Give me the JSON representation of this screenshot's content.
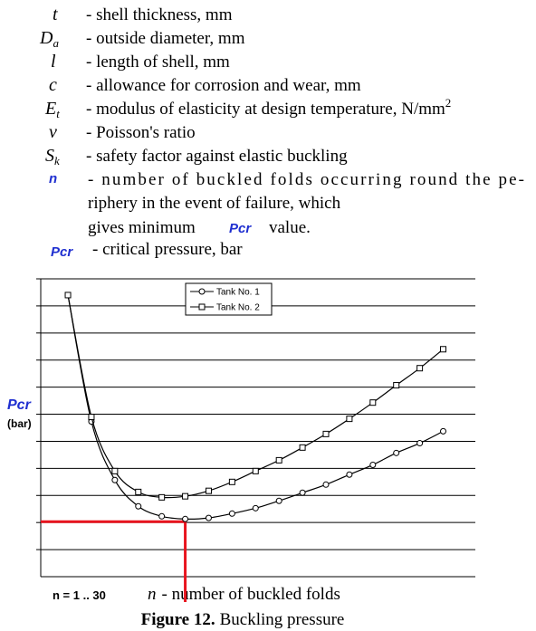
{
  "definitions": [
    {
      "symbol": "t",
      "text": "- shell thickness, mm"
    },
    {
      "symbol": "D",
      "subscript": "a",
      "text": "- outside diameter, mm"
    },
    {
      "symbol": "l",
      "text": "- length of shell, mm"
    },
    {
      "symbol": "c",
      "text": "- allowance for corrosion and wear, mm"
    },
    {
      "symbol": "E",
      "subscript": "t",
      "text": "- modulus of elasticity at design temperature, N/mm",
      "superscript": "2"
    },
    {
      "symbol": "ν",
      "text": "- Poisson's ratio"
    },
    {
      "symbol": "S",
      "subscript": "k",
      "text": "- safety factor against elastic buckling"
    },
    {
      "symbol": "n",
      "lines": [
        "- number of buckled folds occurring round the pe-",
        "riphery in the event of failure, which",
        "gives minimum",
        "Pcr",
        "value."
      ]
    },
    {
      "symbol": "Pcr",
      "text": "- critical pressure, bar"
    }
  ],
  "chart_data": {
    "type": "line",
    "y_label": "Pcr",
    "y_unit": "(bar)",
    "x_range_label": "n = 1 .. 30",
    "x_label_var": "n",
    "x_label": "- number of buckled folds",
    "x": [
      2,
      3,
      4,
      5,
      6,
      7,
      8,
      9,
      10,
      11,
      12,
      13,
      14,
      15,
      16,
      17,
      18
    ],
    "xlim": [
      0.84,
      19.37
    ],
    "ylim": [
      0,
      11
    ],
    "ygrid": [
      1,
      2,
      3,
      4,
      5,
      6,
      7,
      8,
      9,
      10,
      11
    ],
    "series": [
      {
        "name": "Tank No. 1",
        "marker": "circle",
        "color": "#000000",
        "values": [
          10.4,
          5.73,
          3.57,
          2.6,
          2.23,
          2.13,
          2.17,
          2.33,
          2.53,
          2.8,
          3.1,
          3.4,
          3.77,
          4.13,
          4.57,
          4.93,
          5.37
        ]
      },
      {
        "name": "Tank No. 2",
        "marker": "square",
        "color": "#000000",
        "values": [
          10.4,
          5.9,
          3.9,
          3.13,
          2.93,
          2.97,
          3.17,
          3.5,
          3.9,
          4.3,
          4.77,
          5.27,
          5.83,
          6.43,
          7.07,
          7.7,
          8.4
        ]
      }
    ],
    "highlight": {
      "x": 7,
      "y": 2.03,
      "color": "#e8141e"
    }
  },
  "caption": {
    "label": "Figure 12.",
    "text": "Buckling pressure"
  }
}
